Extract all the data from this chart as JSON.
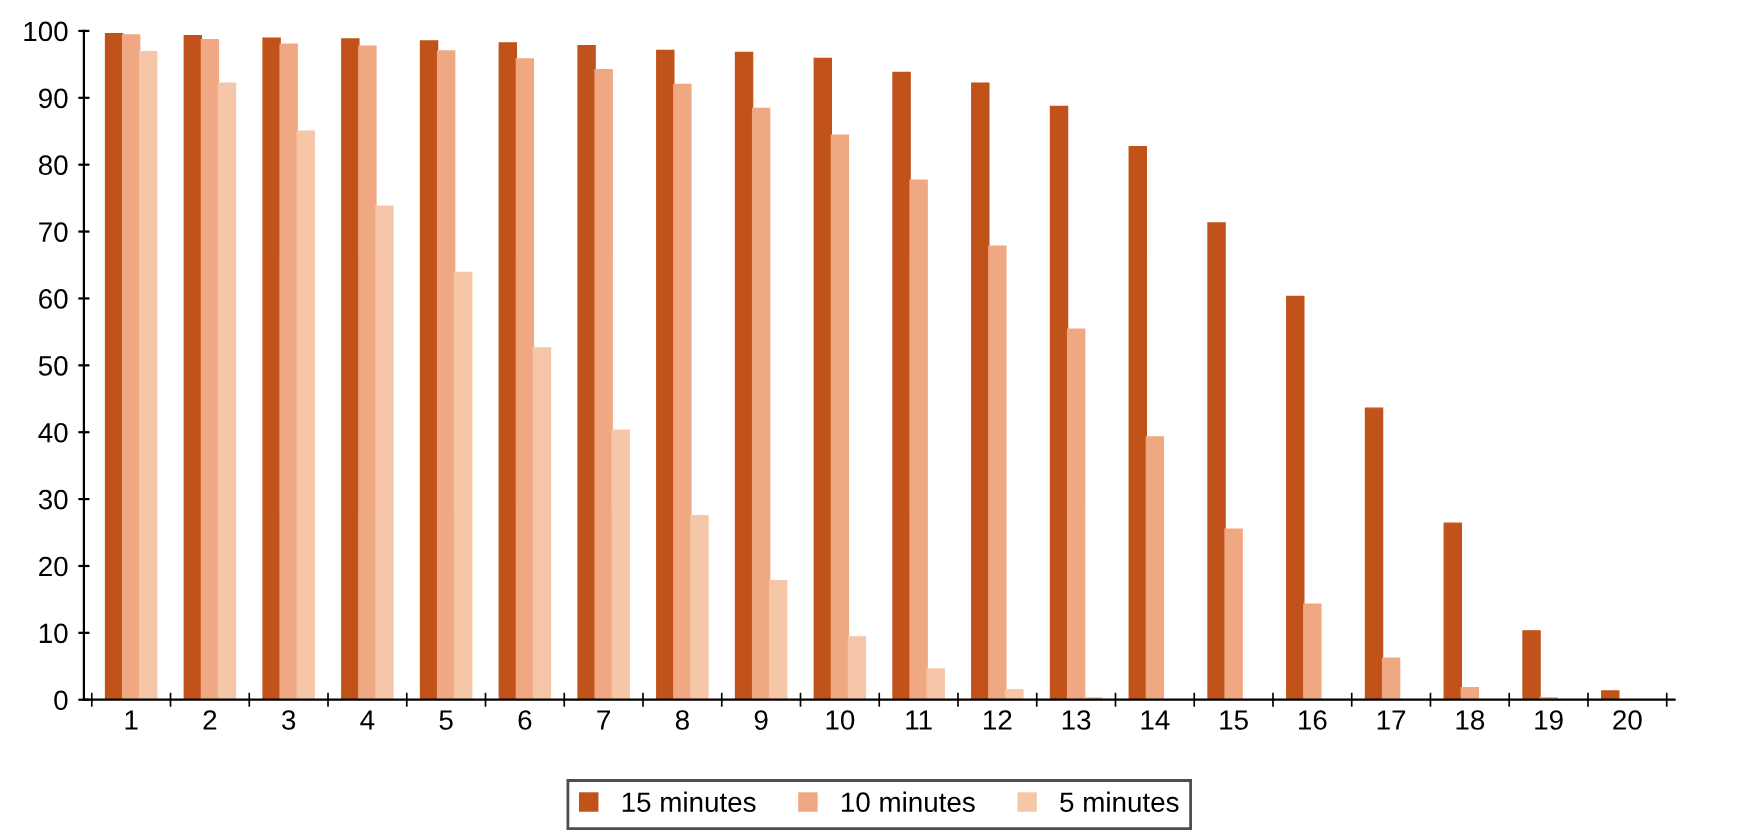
{
  "chart_data": {
    "type": "bar",
    "categories": [
      "1",
      "2",
      "3",
      "4",
      "5",
      "6",
      "7",
      "8",
      "9",
      "10",
      "11",
      "12",
      "13",
      "14",
      "15",
      "16",
      "17",
      "18",
      "19",
      "20"
    ],
    "series": [
      {
        "name": "15 minutes",
        "color": "#c0521a",
        "values": [
          99.6,
          99.3,
          98.9,
          98.8,
          98.5,
          98.2,
          97.8,
          97.1,
          96.8,
          95.9,
          93.8,
          92.2,
          88.7,
          82.7,
          71.3,
          60.3,
          43.6,
          26.4,
          10.3,
          1.3
        ]
      },
      {
        "name": "10 minutes",
        "color": "#f0a882",
        "values": [
          99.4,
          98.7,
          98.0,
          97.7,
          97.0,
          95.8,
          94.2,
          92.0,
          88.4,
          84.4,
          77.7,
          67.8,
          55.4,
          39.3,
          25.5,
          14.3,
          6.2,
          1.8,
          0.3,
          0
        ]
      },
      {
        "name": "5 minutes",
        "color": "#f6c6a8",
        "values": [
          96.9,
          92.2,
          85.0,
          73.8,
          63.9,
          52.6,
          40.3,
          27.5,
          17.8,
          9.4,
          4.6,
          1.5,
          0.3,
          0,
          0,
          0,
          0,
          0,
          0,
          0
        ]
      }
    ],
    "ylim": [
      0,
      100
    ],
    "yticks": [
      0,
      10,
      20,
      30,
      40,
      50,
      60,
      70,
      80,
      90,
      100
    ],
    "grid": false,
    "legend": "bottom"
  }
}
